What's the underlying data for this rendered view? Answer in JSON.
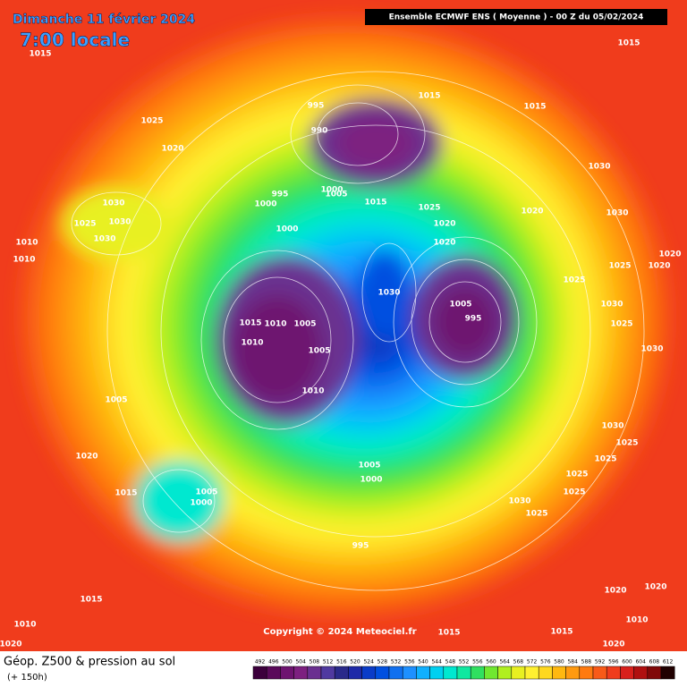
{
  "header": {
    "date": "Dimanche 11 février 2024",
    "time": "7:00 locale",
    "model": "Ensemble ECMWF ENS  ( Moyenne )  -  00 Z du 05/02/2024"
  },
  "footer": {
    "title": "Géop. Z500 & pression au sol",
    "lead": "(+ 150h)",
    "copyright": "Copyright © 2024 Meteociel.fr"
  },
  "legend": {
    "labels": [
      492,
      496,
      500,
      504,
      508,
      512,
      516,
      520,
      524,
      528,
      532,
      536,
      540,
      544,
      548,
      552,
      556,
      560,
      564,
      568,
      572,
      576,
      580,
      584,
      588,
      592,
      596,
      600,
      604,
      608,
      612
    ],
    "colors": [
      "#3c003c",
      "#5a0a5a",
      "#6e1470",
      "#7d2080",
      "#6a3090",
      "#503aa0",
      "#2a2a8a",
      "#1e2aa8",
      "#0a3cc8",
      "#0050e0",
      "#1070f0",
      "#1e90ff",
      "#10b0ff",
      "#00d0f0",
      "#00e8d0",
      "#10e8a0",
      "#30e060",
      "#70e830",
      "#b0f020",
      "#e8f020",
      "#fff030",
      "#ffd820",
      "#ffb810",
      "#ff9a10",
      "#ff7a10",
      "#f85a18",
      "#f03c1c",
      "#d8201c",
      "#b01010",
      "#800808",
      "#200000"
    ]
  },
  "map": {
    "isobar_labels": [
      "1015",
      "1025",
      "1020",
      "995",
      "990",
      "1015",
      "1015",
      "1015",
      "1030",
      "995",
      "1000",
      "1000",
      "1005",
      "1015",
      "1025",
      "1020",
      "1020",
      "1020",
      "1030",
      "1010",
      "1010",
      "1030",
      "1030",
      "1025",
      "1030",
      "1000",
      "1030",
      "1005",
      "995",
      "1015",
      "1010",
      "1005",
      "1010",
      "1005",
      "1010",
      "1005",
      "1020",
      "1015",
      "1005",
      "1000",
      "1005",
      "1000",
      "995",
      "1030",
      "1025",
      "1025",
      "1025",
      "1025",
      "1025",
      "1030",
      "1030",
      "1020",
      "1020",
      "1025",
      "1025",
      "1030",
      "1025",
      "1015",
      "1010",
      "1020",
      "1015",
      "1020",
      "1020",
      "1010",
      "1020",
      "1015"
    ]
  }
}
